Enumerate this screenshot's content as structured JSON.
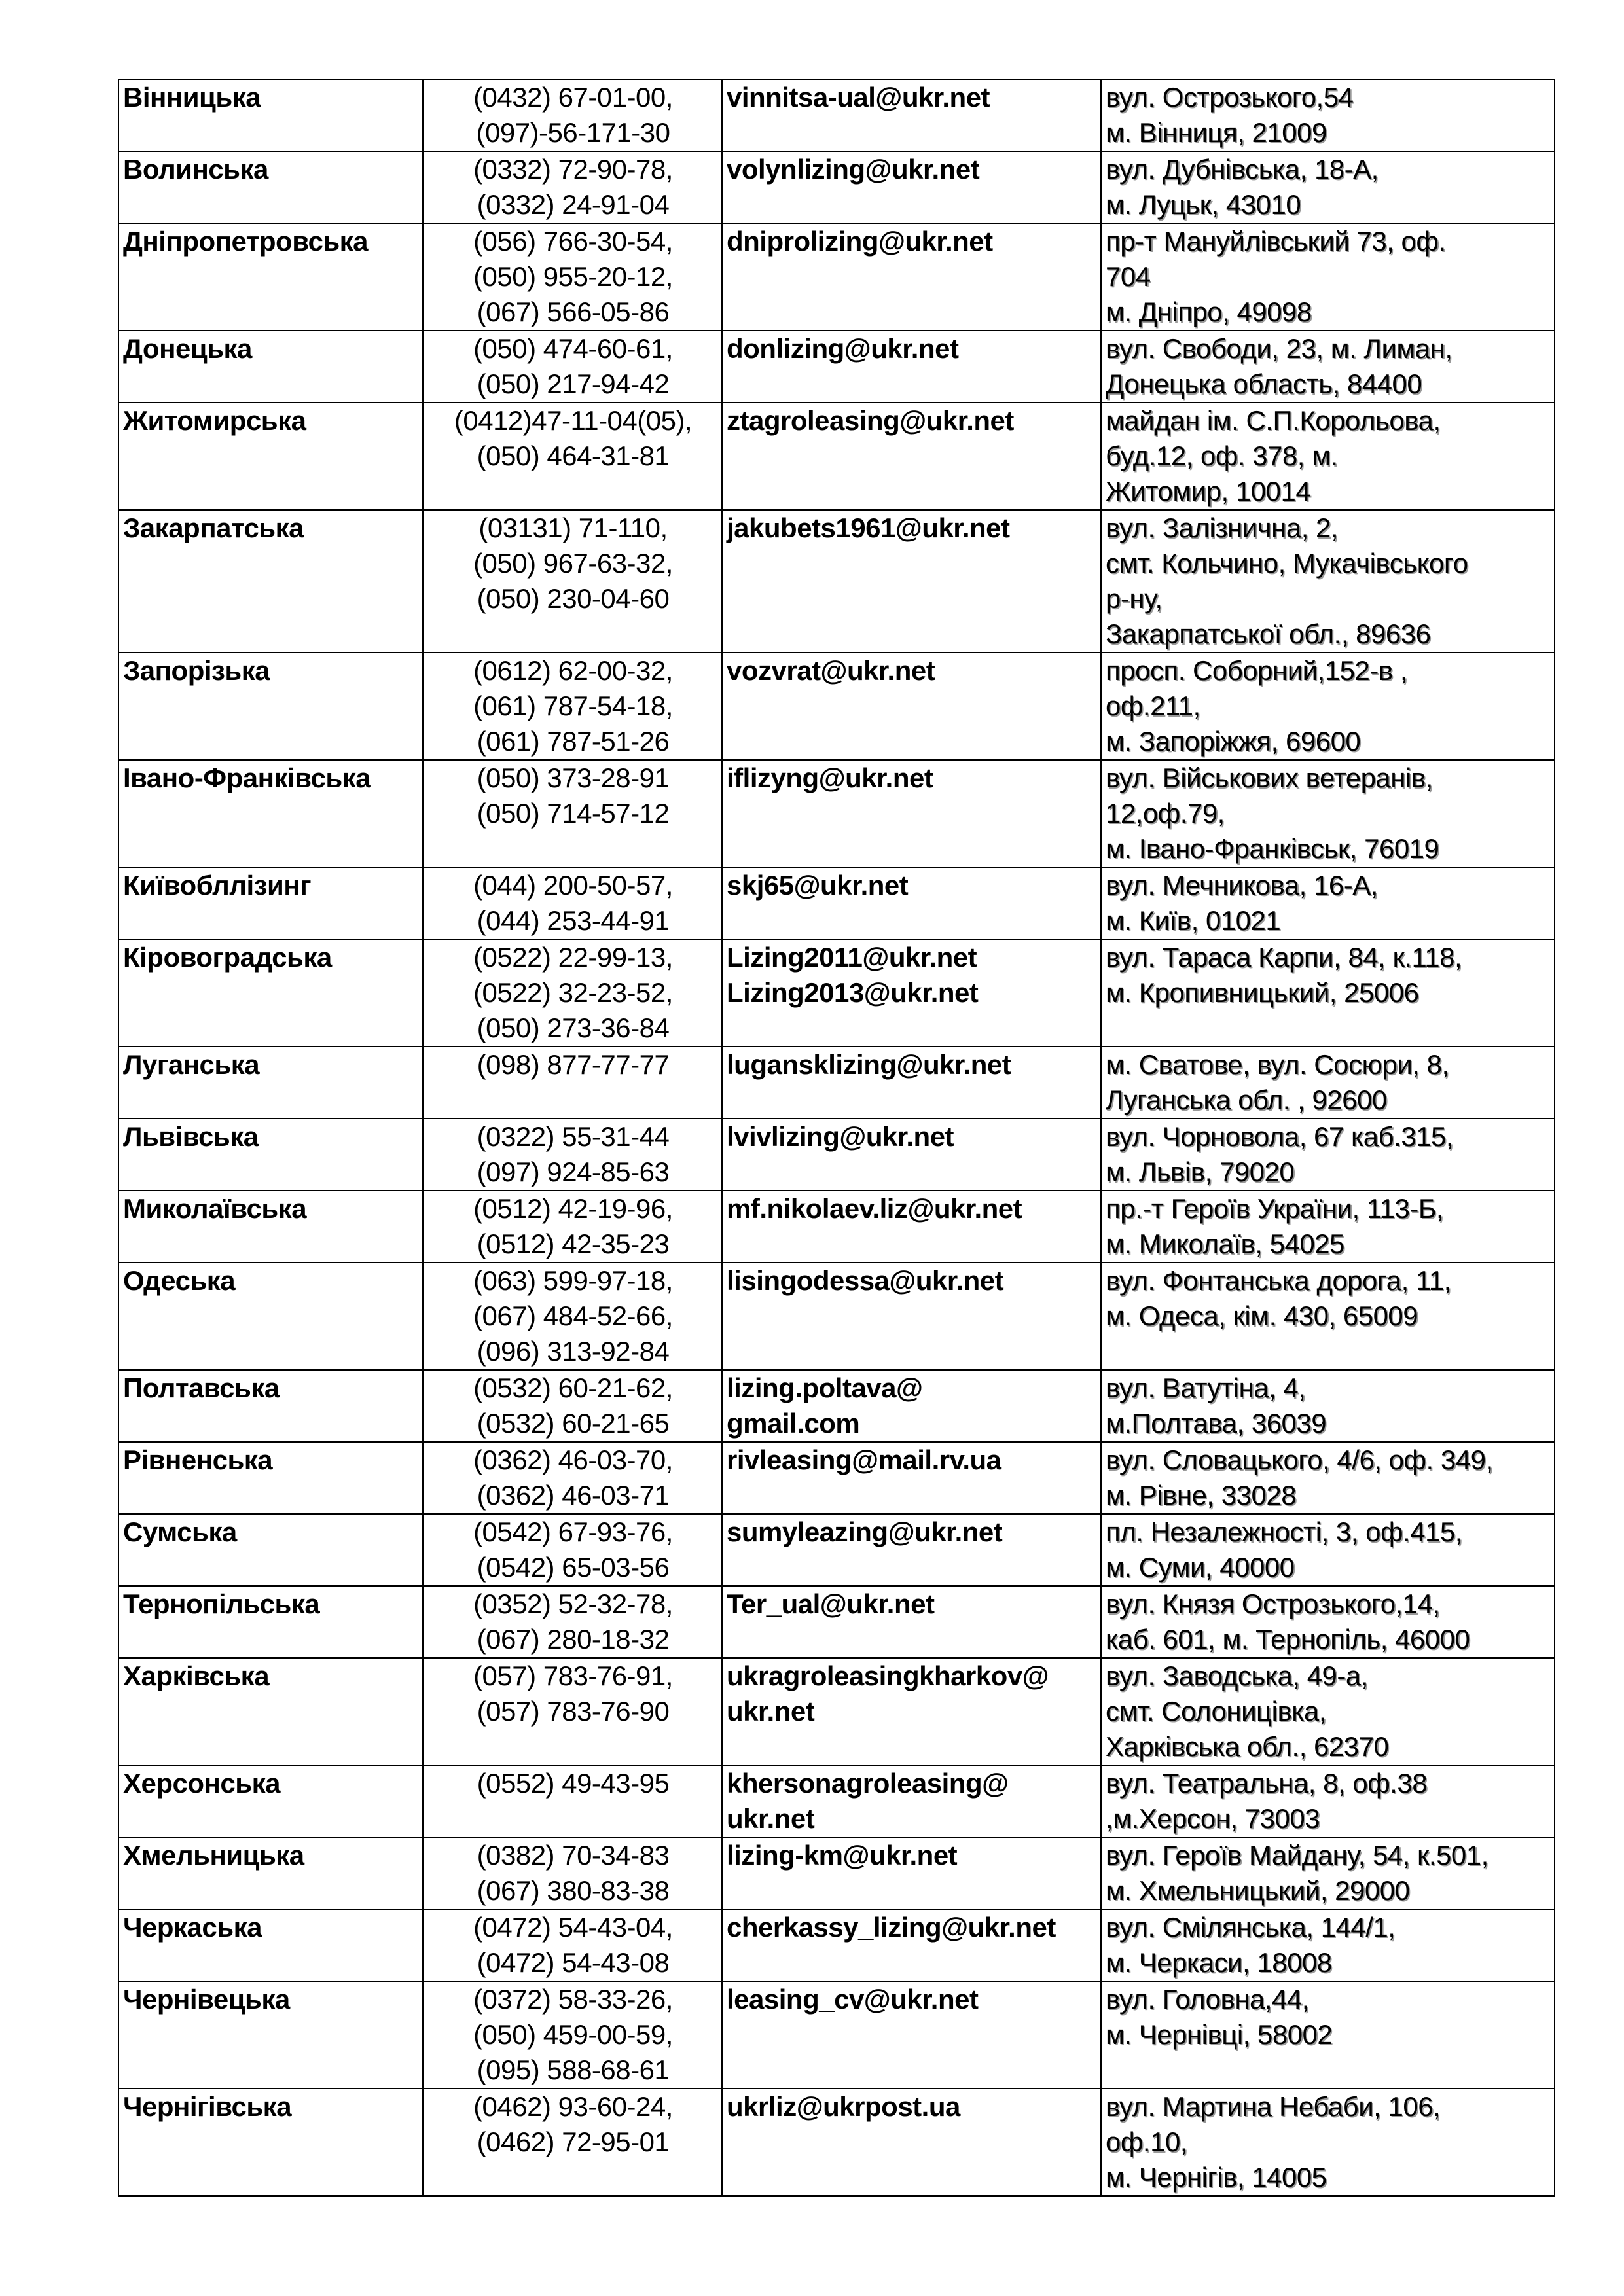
{
  "rows": [
    {
      "region": "Вінницька",
      "phones": [
        "(0432) 67-01-00,",
        "(097)-56-171-30"
      ],
      "emails": [
        "vinnitsa-ual@ukr.net"
      ],
      "address": [
        "вул. Острозького,54",
        "м. Вінниця,  21009"
      ]
    },
    {
      "region": "Волинська",
      "phones": [
        "(0332) 72-90-78,",
        "(0332) 24-91-04"
      ],
      "emails": [
        "volynlizing@ukr.net"
      ],
      "address": [
        "вул. Дубнівська, 18-А,",
        "м. Луцьк,  43010"
      ]
    },
    {
      "region": "Дніпропетровська",
      "phones": [
        "(056) 766-30-54,",
        "(050) 955-20-12,",
        "(067) 566-05-86"
      ],
      "emails": [
        "dniprolizing@ukr.net"
      ],
      "address": [
        "пр-т  Мануйлівський 73,  оф.",
        "704",
        "м. Дніпро,  49098"
      ]
    },
    {
      "region": "Донецька",
      "phones": [
        "(050) 474-60-61,",
        "(050) 217-94-42"
      ],
      "emails": [
        "donlizing@ukr.net"
      ],
      "address": [
        "вул. Свободи, 23, м. Лиман,",
        "Донецька область,  84400"
      ]
    },
    {
      "region": "Житомирська",
      "phones": [
        "(0412)47-11-04(05),",
        "(050) 464-31-81"
      ],
      "emails": [
        "ztagroleasing@ukr.net"
      ],
      "address": [
        "майдан ім. С.П.Корольова,",
        "буд.12,           оф. 378, м.",
        "Житомир,  10014"
      ]
    },
    {
      "region": "Закарпатська",
      "phones": [
        "(03131) 71-110,",
        "(050) 967-63-32,",
        "(050) 230-04-60"
      ],
      "emails": [
        "jakubets1961@ukr.net"
      ],
      "address": [
        "вул. Залізнична, 2,",
        "смт. Кольчино, Мукачівського",
        "р-ну,",
        "Закарпатської обл.,  89636"
      ]
    },
    {
      "region": "Запорізька",
      "phones": [
        "(0612) 62-00-32,",
        "(061) 787-54-18,",
        "(061) 787-51-26"
      ],
      "emails": [
        "vozvrat@ukr.net"
      ],
      "address": [
        "просп. Соборний,152-в ,",
        "оф.211,",
        "м. Запоріжжя,  69600"
      ]
    },
    {
      "region": "Івано-Франківська",
      "phones": [
        "(050) 373-28-91",
        "(050) 714-57-12"
      ],
      "emails": [
        "iflizyng@ukr.net"
      ],
      "address": [
        "вул. Військових ветеранів,",
        "12,оф.79,",
        "м. Івано-Франківськ,  76019"
      ]
    },
    {
      "region": "Київобллізинг",
      "phones": [
        "(044) 200-50-57,",
        "(044) 253-44-91"
      ],
      "emails": [
        "skj65@ukr.net"
      ],
      "address": [
        "вул. Мечникова, 16-А,",
        "м. Київ, 01021"
      ]
    },
    {
      "region": "Кіровоградська",
      "phones": [
        "(0522) 22-99-13,",
        "(0522) 32-23-52,",
        "(050) 273-36-84"
      ],
      "emails": [
        "Lizing2011@ukr.net",
        "Lizing2013@ukr.net"
      ],
      "address": [
        "вул. Тараса Карпи, 84, к.118,",
        "м. Кропивницький, 25006"
      ]
    },
    {
      "region": "Луганська",
      "phones": [
        "(098) 877-77-77"
      ],
      "emails": [
        "lugansklizing@ukr.net"
      ],
      "address": [
        "м. Сватове, вул. Сосюри, 8,",
        "Луганська обл. , 92600"
      ]
    },
    {
      "region": "Львівська",
      "phones": [
        "(0322) 55-31-44",
        "(097) 924-85-63"
      ],
      "emails": [
        "lvivlizing@ukr.net"
      ],
      "address": [
        "вул. Чорновола, 67 каб.315,",
        "м. Львів,  79020"
      ]
    },
    {
      "region": "Миколаївська",
      "phones": [
        "(0512) 42-19-96,",
        "(0512) 42-35-23"
      ],
      "emails": [
        "mf.nikolaev.liz@ukr.net"
      ],
      "address": [
        "пр.-т  Героїв України, 113-Б,",
        "м. Миколаїв, 54025"
      ]
    },
    {
      "region": "Одеська",
      "phones": [
        "(063) 599-97-18,",
        "(067) 484-52-66,",
        "(096) 313-92-84"
      ],
      "emails": [
        "lisingodessa@ukr.net"
      ],
      "address": [
        "вул. Фонтанська дорога, 11,",
        "м. Одеса, кім. 430, 65009"
      ]
    },
    {
      "region": "Полтавська",
      "phones": [
        "(0532) 60-21-62,",
        "(0532) 60-21-65"
      ],
      "emails": [
        "lizing.poltava@",
        "gmail.com"
      ],
      "address": [
        "вул. Ватутіна, 4,",
        "м.Полтава,  36039"
      ]
    },
    {
      "region": "Рівненська",
      "phones": [
        "(0362) 46-03-70,",
        "(0362) 46-03-71"
      ],
      "emails": [
        "rivleasing@mail.rv.ua"
      ],
      "address": [
        "вул. Словацького, 4/6, оф. 349,",
        "м. Рівне,  33028"
      ]
    },
    {
      "region": "Сумська",
      "phones": [
        "(0542) 67-93-76,",
        "(0542) 65-03-56"
      ],
      "emails": [
        "sumyleazing@ukr.net"
      ],
      "address": [
        "пл. Незалежності, 3, оф.415,",
        "м. Суми,  40000"
      ]
    },
    {
      "region": "Тернопільська",
      "phones": [
        "(0352) 52-32-78,",
        "(067) 280-18-32"
      ],
      "emails": [
        "Ter_ual@ukr.net"
      ],
      "address": [
        "вул. Князя Острозького,14,",
        "каб. 601,  м. Тернопіль, 46000"
      ]
    },
    {
      "region": "Харківська",
      "phones": [
        "(057) 783-76-91,",
        "(057) 783-76-90"
      ],
      "emails": [
        "ukragroleasingkharkov@",
        "ukr.net"
      ],
      "address": [
        "вул. Заводська, 49-а,",
        "смт. Солоницівка,",
        "Харківська обл.,  62370"
      ]
    },
    {
      "region": "Херсонська",
      "phones": [
        "(0552) 49-43-95"
      ],
      "emails": [
        "khersonagroleasing@",
        "ukr.net"
      ],
      "address": [
        "вул. Театральна, 8, оф.38",
        ",м.Херсон,  73003"
      ]
    },
    {
      "region": "Хмельницька",
      "phones": [
        "(0382) 70-34-83",
        "(067) 380-83-38"
      ],
      "emails": [
        "lizing-km@ukr.net"
      ],
      "address": [
        "вул. Героїв Майдану, 54, к.501,",
        "м. Хмельницький,  29000"
      ]
    },
    {
      "region": "Черкаська",
      "phones": [
        "(0472) 54-43-04,",
        "(0472) 54-43-08"
      ],
      "emails": [
        "cherkassy_lizing@ukr.net"
      ],
      "address": [
        "вул. Смілянська, 144/1,",
        "м. Черкаси, 18008"
      ]
    },
    {
      "region": "Чернівецька",
      "phones": [
        "(0372) 58-33-26,",
        "(050) 459-00-59,",
        "(095) 588-68-61"
      ],
      "emails": [
        "leasing_cv@ukr.net"
      ],
      "address": [
        "вул. Головна,44,",
        "м. Чернівці,  58002"
      ]
    },
    {
      "region": "Чернігівська",
      "phones": [
        "(0462) 93-60-24,",
        "(0462) 72-95-01"
      ],
      "emails": [
        "ukrliz@ukrpost.ua"
      ],
      "address": [
        "вул. Мартина Небаби, 106,",
        "оф.10,",
        "м. Чернігів, 14005"
      ]
    }
  ]
}
